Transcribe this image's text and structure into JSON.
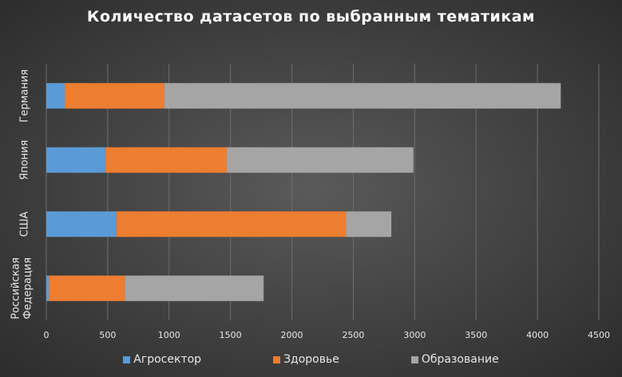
{
  "chart_data": {
    "type": "bar",
    "orientation": "horizontal",
    "stacked": true,
    "title": "Количество датасетов по выбранным тематикам",
    "categories": [
      "Российская Федерация",
      "США",
      "Япония",
      "Германия"
    ],
    "series": [
      {
        "name": "Агросектор",
        "color": "#5b9bd5",
        "values": [
          20,
          570,
          480,
          150
        ]
      },
      {
        "name": "Здоровье",
        "color": "#ed7d31",
        "values": [
          620,
          1870,
          990,
          810
        ]
      },
      {
        "name": "Образование",
        "color": "#a5a5a5",
        "values": [
          1130,
          370,
          1520,
          3230
        ]
      }
    ],
    "xlim": [
      0,
      4500
    ],
    "xticks": [
      "0",
      "500",
      "1000",
      "1500",
      "2000",
      "2500",
      "3000",
      "3500",
      "4000",
      "4500"
    ],
    "grid": true,
    "legend": "bottom"
  }
}
